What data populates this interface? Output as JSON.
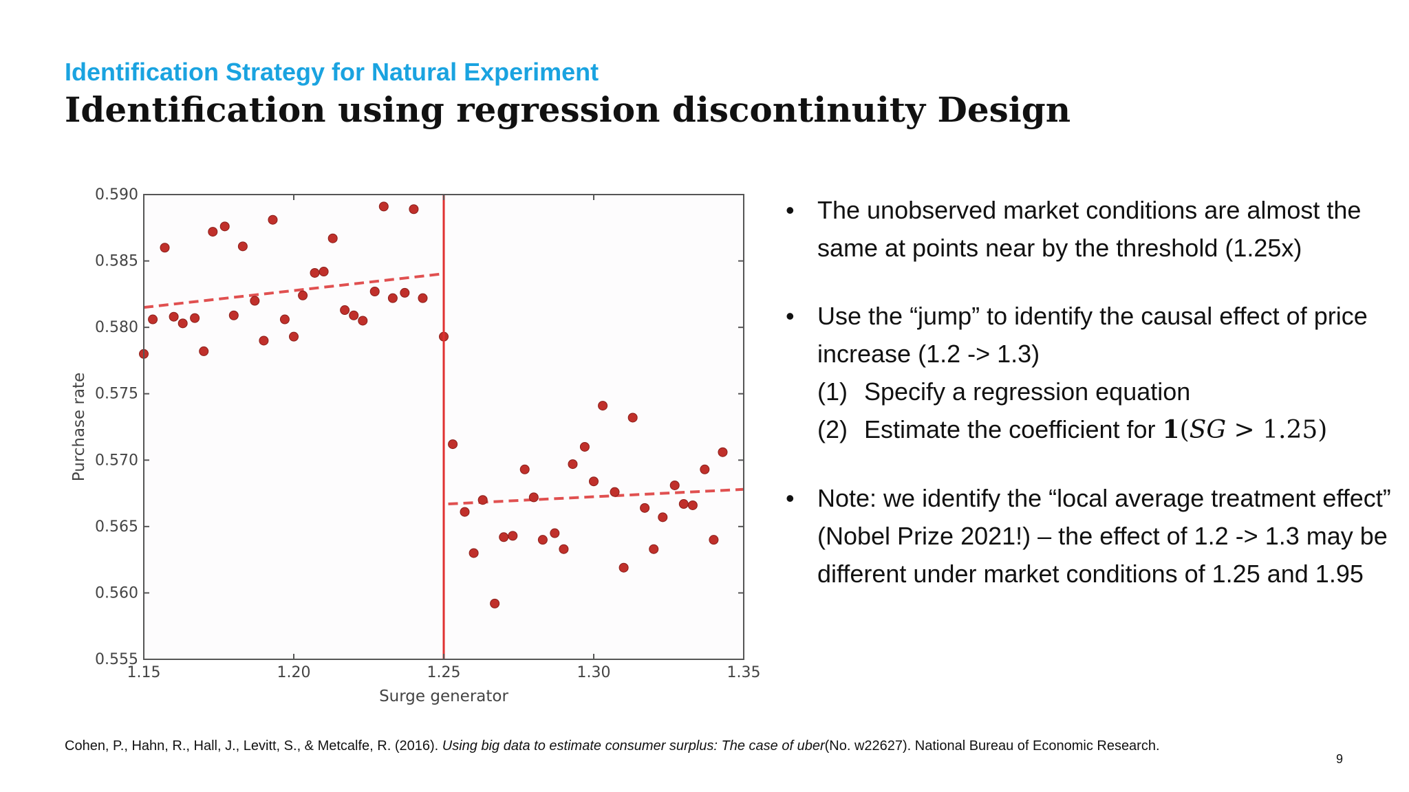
{
  "slide": {
    "subtitle": "Identification Strategy for Natural Experiment",
    "title": "Identification using regression discontinuity Design",
    "page_number": "9",
    "bullets": [
      {
        "marker": "•",
        "text": "The unobserved market conditions are almost the same at points near by the threshold (1.25x)"
      },
      {
        "marker": "•",
        "text": "Use the “jump” to identify the causal effect of price increase (1.2 -> 1.3)"
      },
      {
        "marker": "•",
        "text": "Note: we identify the “local average treatment effect” (Nobel Prize 2021!) – the effect of 1.2 -> 1.3 may be different under market conditions of 1.25 and 1.95"
      }
    ],
    "sub_items": [
      {
        "num": "(1)",
        "text": "Specify a regression equation"
      },
      {
        "num": "(2)",
        "text": "Estimate the coefficient for ",
        "math_one": "1",
        "math_open": "(",
        "math_var": "SG",
        "math_rest": " > 1.25)"
      }
    ],
    "citation": {
      "authors": "Cohen, P., Hahn, R., Hall, J., Levitt, S., & Metcalfe, R. (2016). ",
      "title": "Using big data to estimate consumer surplus: The case of uber",
      "rest": "(No. w22627). National Bureau of Economic Research."
    }
  },
  "chart_data": {
    "type": "scatter",
    "xlabel": "Surge generator",
    "ylabel": "Purchase rate",
    "xlim": [
      1.15,
      1.35
    ],
    "ylim": [
      0.555,
      0.59
    ],
    "xticks": [
      1.15,
      1.2,
      1.25,
      1.3,
      1.35
    ],
    "xtick_labels": [
      "1.15",
      "1.20",
      "1.25",
      "1.30",
      "1.35"
    ],
    "yticks": [
      0.555,
      0.56,
      0.565,
      0.57,
      0.575,
      0.58,
      0.585,
      0.59
    ],
    "ytick_labels": [
      "0.555",
      "0.560",
      "0.565",
      "0.570",
      "0.575",
      "0.580",
      "0.585",
      "0.590"
    ],
    "grid": false,
    "threshold": 1.25,
    "colors": {
      "points": "#c0302b",
      "point_edge": "#8a1d19",
      "fit": "#e05050",
      "threshold": "#e03030",
      "axes": "#555555"
    },
    "points": [
      {
        "x": 1.15,
        "y": 0.578
      },
      {
        "x": 1.153,
        "y": 0.5806
      },
      {
        "x": 1.157,
        "y": 0.586
      },
      {
        "x": 1.16,
        "y": 0.5808
      },
      {
        "x": 1.163,
        "y": 0.5803
      },
      {
        "x": 1.167,
        "y": 0.5807
      },
      {
        "x": 1.17,
        "y": 0.5782
      },
      {
        "x": 1.173,
        "y": 0.5872
      },
      {
        "x": 1.177,
        "y": 0.5876
      },
      {
        "x": 1.18,
        "y": 0.5809
      },
      {
        "x": 1.183,
        "y": 0.5861
      },
      {
        "x": 1.187,
        "y": 0.582
      },
      {
        "x": 1.19,
        "y": 0.579
      },
      {
        "x": 1.193,
        "y": 0.5881
      },
      {
        "x": 1.197,
        "y": 0.5806
      },
      {
        "x": 1.2,
        "y": 0.5793
      },
      {
        "x": 1.203,
        "y": 0.5824
      },
      {
        "x": 1.207,
        "y": 0.5841
      },
      {
        "x": 1.21,
        "y": 0.5842
      },
      {
        "x": 1.213,
        "y": 0.5867
      },
      {
        "x": 1.217,
        "y": 0.5813
      },
      {
        "x": 1.22,
        "y": 0.5809
      },
      {
        "x": 1.223,
        "y": 0.5805
      },
      {
        "x": 1.227,
        "y": 0.5827
      },
      {
        "x": 1.23,
        "y": 0.5891
      },
      {
        "x": 1.233,
        "y": 0.5822
      },
      {
        "x": 1.237,
        "y": 0.5826
      },
      {
        "x": 1.24,
        "y": 0.5889
      },
      {
        "x": 1.243,
        "y": 0.5822
      },
      {
        "x": 1.25,
        "y": 0.5793
      },
      {
        "x": 1.253,
        "y": 0.5712
      },
      {
        "x": 1.257,
        "y": 0.5661
      },
      {
        "x": 1.26,
        "y": 0.563
      },
      {
        "x": 1.263,
        "y": 0.567
      },
      {
        "x": 1.267,
        "y": 0.5592
      },
      {
        "x": 1.27,
        "y": 0.5642
      },
      {
        "x": 1.273,
        "y": 0.5643
      },
      {
        "x": 1.277,
        "y": 0.5693
      },
      {
        "x": 1.28,
        "y": 0.5672
      },
      {
        "x": 1.283,
        "y": 0.564
      },
      {
        "x": 1.287,
        "y": 0.5645
      },
      {
        "x": 1.29,
        "y": 0.5633
      },
      {
        "x": 1.293,
        "y": 0.5697
      },
      {
        "x": 1.297,
        "y": 0.571
      },
      {
        "x": 1.3,
        "y": 0.5684
      },
      {
        "x": 1.303,
        "y": 0.5741
      },
      {
        "x": 1.307,
        "y": 0.5676
      },
      {
        "x": 1.31,
        "y": 0.5619
      },
      {
        "x": 1.313,
        "y": 0.5732
      },
      {
        "x": 1.317,
        "y": 0.5664
      },
      {
        "x": 1.32,
        "y": 0.5633
      },
      {
        "x": 1.323,
        "y": 0.5657
      },
      {
        "x": 1.327,
        "y": 0.5681
      },
      {
        "x": 1.33,
        "y": 0.5667
      },
      {
        "x": 1.333,
        "y": 0.5666
      },
      {
        "x": 1.337,
        "y": 0.5693
      },
      {
        "x": 1.34,
        "y": 0.564
      },
      {
        "x": 1.343,
        "y": 0.5706
      }
    ],
    "fit_lines": [
      {
        "x": [
          1.15,
          1.2485
        ],
        "y": [
          0.5815,
          0.584
        ]
      },
      {
        "x": [
          1.2515,
          1.35
        ],
        "y": [
          0.5667,
          0.5678
        ]
      }
    ]
  }
}
